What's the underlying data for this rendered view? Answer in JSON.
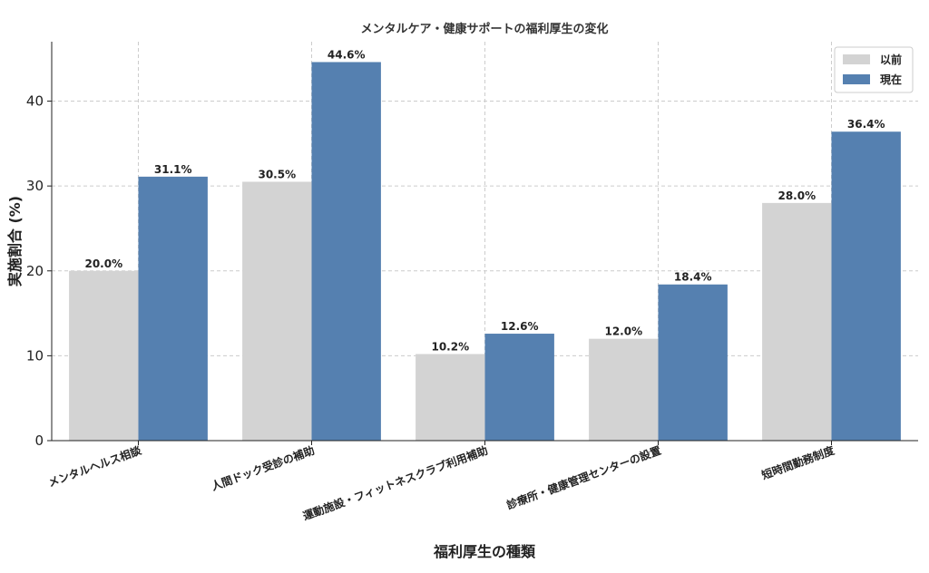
{
  "chart_data": {
    "type": "bar",
    "title": "メンタルケア・健康サポートの福利厚生の変化",
    "xlabel": "福利厚生の種類",
    "ylabel": "実施割合 (%)",
    "ylim": [
      0,
      47
    ],
    "yticks": [
      0,
      10,
      20,
      30,
      40
    ],
    "grid": true,
    "legend_position": "top-right",
    "categories": [
      "メンタルヘルス相談",
      "人間ドック受診の補助",
      "運動施設・フィットネスクラブ利用補助",
      "診療所・健康管理センターの設置",
      "短時間勤務制度"
    ],
    "series": [
      {
        "name": "以前",
        "color": "#d3d3d3",
        "values": [
          20.0,
          30.5,
          10.2,
          12.0,
          28.0
        ],
        "value_labels": [
          "20.0%",
          "30.5%",
          "10.2%",
          "12.0%",
          "28.0%"
        ]
      },
      {
        "name": "現在",
        "color": "#5580b0",
        "values": [
          31.1,
          44.6,
          12.6,
          18.4,
          36.4
        ],
        "value_labels": [
          "31.1%",
          "44.6%",
          "12.6%",
          "18.4%",
          "36.4%"
        ]
      }
    ]
  }
}
